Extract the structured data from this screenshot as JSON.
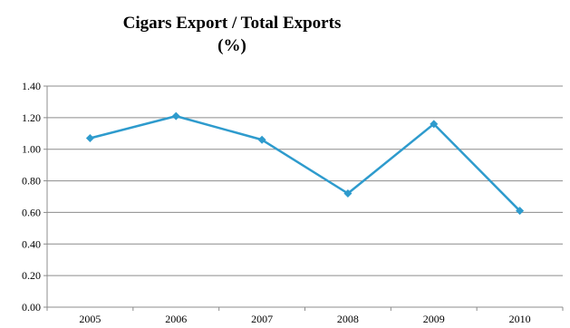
{
  "chart_data": {
    "type": "line",
    "title": "Cigars Export / Total Exports",
    "subtitle": "(%)",
    "xlabel": "",
    "ylabel": "",
    "categories": [
      "2005",
      "2006",
      "2007",
      "2008",
      "2009",
      "2010"
    ],
    "series": [
      {
        "values": [
          1.07,
          1.21,
          1.06,
          0.72,
          1.16,
          0.61
        ],
        "color": "#2E9BCD"
      }
    ],
    "ylim": [
      0,
      1.4
    ],
    "y_ticks": [
      "0.00",
      "0.20",
      "0.40",
      "0.60",
      "0.80",
      "1.00",
      "1.20",
      "1.40"
    ],
    "grid": true,
    "legend": "none",
    "marker": "diamond"
  }
}
